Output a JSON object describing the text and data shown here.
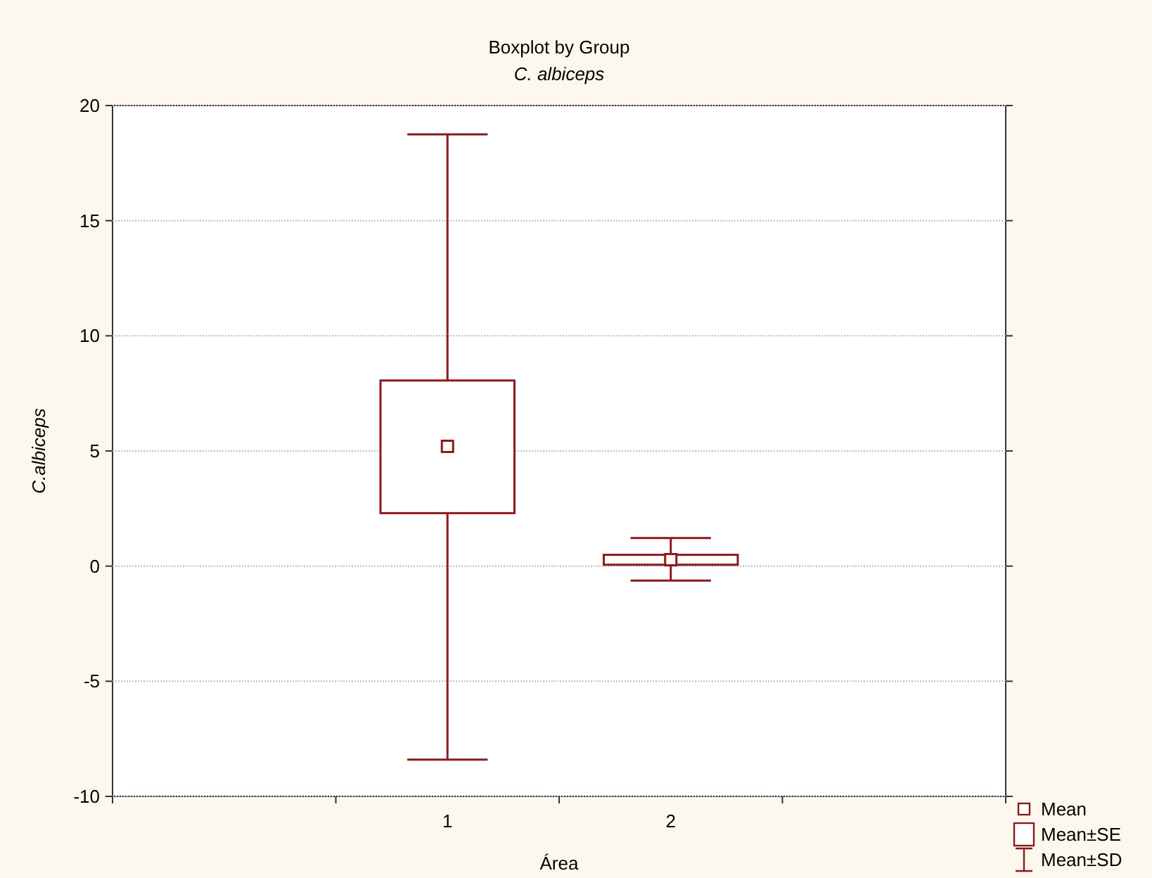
{
  "chart_data": {
    "type": "box",
    "title": "Boxplot by Group",
    "subtitle": "C. albiceps",
    "xlabel": "Área",
    "ylabel": "C.albiceps",
    "categories": [
      "1",
      "2"
    ],
    "boxes": [
      {
        "low": -8.4,
        "q1": 2.3,
        "median": 5.2,
        "q3": 8.06,
        "high": 18.75
      },
      {
        "low": -0.63,
        "q1": 0.06,
        "median": 0.28,
        "q3": 0.49,
        "high": 1.22
      }
    ],
    "color": "#8b1a1a",
    "ylim": [
      -10,
      20
    ],
    "yticks": [
      -10,
      -5,
      0,
      5,
      10,
      15,
      20
    ],
    "grid": "y",
    "annotations": [
      "Mean",
      "Mean±SE",
      "Mean±SD"
    ]
  }
}
